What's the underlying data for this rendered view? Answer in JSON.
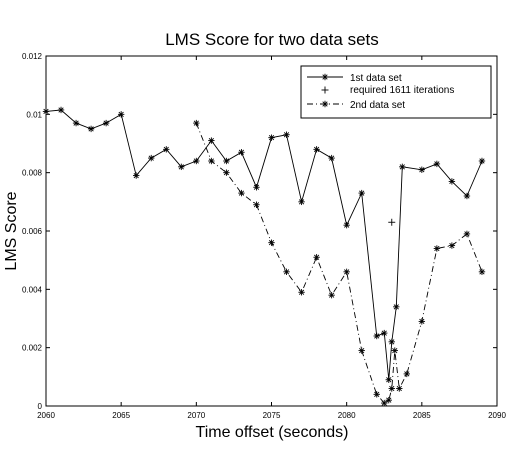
{
  "chart_data": {
    "type": "line",
    "title": "LMS Score for two data sets",
    "xlabel": "Time offset (seconds)",
    "ylabel": "LMS Score",
    "xlim": [
      2060,
      2090
    ],
    "ylim": [
      0,
      0.012
    ],
    "xticks": [
      "2060",
      "2065",
      "2070",
      "2075",
      "2080",
      "2085",
      "2090"
    ],
    "xtick_values": [
      2060,
      2065,
      2070,
      2075,
      2080,
      2085,
      2090
    ],
    "yticks": [
      "0",
      "0.002",
      "0.004",
      "0.006",
      "0.008",
      "0.01",
      "0.012"
    ],
    "ytick_values": [
      0,
      0.002,
      0.004,
      0.006,
      0.008,
      0.01,
      0.012
    ],
    "grid": false,
    "legend_position": "top-right",
    "series": [
      {
        "name": "1st data set",
        "line_style": "solid",
        "marker": "star",
        "x": [
          2060,
          2061,
          2062,
          2063,
          2064,
          2065,
          2066,
          2067,
          2068,
          2069,
          2070,
          2071,
          2072,
          2073,
          2074,
          2075,
          2076,
          2077,
          2078,
          2079,
          2080,
          2081,
          2082,
          2082.5,
          2082.8,
          2083,
          2083.3,
          2083.7,
          2085,
          2086,
          2087,
          2088,
          2089
        ],
        "y": [
          0.0101,
          0.01015,
          0.0097,
          0.0095,
          0.0097,
          0.01,
          0.0079,
          0.0085,
          0.0088,
          0.0082,
          0.0084,
          0.0091,
          0.0084,
          0.0087,
          0.0075,
          0.0092,
          0.0093,
          0.007,
          0.0088,
          0.0085,
          0.0062,
          0.0073,
          0.0024,
          0.0025,
          0.0009,
          0.0022,
          0.0034,
          0.0082,
          0.0081,
          0.0083,
          0.0077,
          0.0072,
          0.0084
        ]
      },
      {
        "name": "required 1611 iterations",
        "line_style": "none",
        "marker": "plus",
        "x": [
          2083
        ],
        "y": [
          0.0063
        ]
      },
      {
        "name": "2nd data set",
        "line_style": "dash-dot",
        "marker": "star",
        "x": [
          2070,
          2071,
          2072,
          2073,
          2074,
          2075,
          2076,
          2077,
          2078,
          2079,
          2080,
          2081,
          2082,
          2082.5,
          2082.8,
          2083,
          2083.2,
          2083.5,
          2084,
          2085,
          2086,
          2087,
          2088,
          2089
        ],
        "y": [
          0.0097,
          0.0084,
          0.008,
          0.0073,
          0.0069,
          0.0056,
          0.0046,
          0.0039,
          0.0051,
          0.0038,
          0.0046,
          0.0019,
          0.0004,
          0.0001,
          0.0002,
          0.0006,
          0.0019,
          0.0006,
          0.0011,
          0.0029,
          0.0054,
          0.0055,
          0.0059,
          0.0046
        ]
      }
    ]
  }
}
